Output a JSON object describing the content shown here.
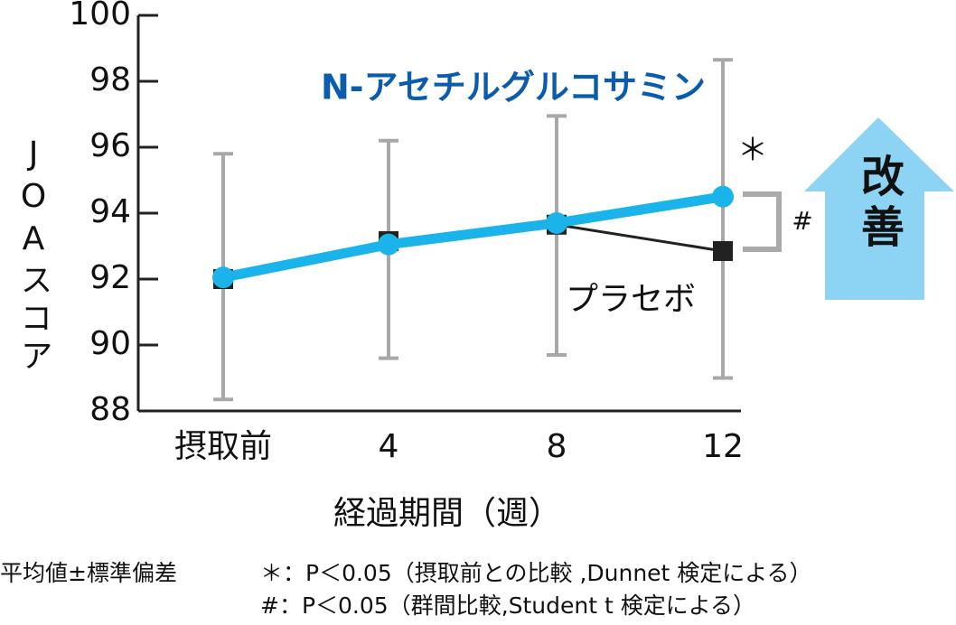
{
  "chart_data": {
    "type": "line",
    "ylabel": "JOAスコア",
    "xlabel": "経過期間（週）",
    "categories": [
      "摂取前",
      "4",
      "8",
      "12"
    ],
    "series": [
      {
        "name": "N-アセチルグルコサミン",
        "color": "#1ab4ea",
        "label_color": "#0b5cad",
        "values": [
          92.05,
          93.05,
          93.7,
          94.5
        ]
      },
      {
        "name": "プラセボ",
        "color": "#222222",
        "values": [
          92.0,
          93.15,
          93.65,
          92.85
        ]
      }
    ],
    "error_low": [
      88.35,
      89.6,
      89.7,
      89.0
    ],
    "error_high": [
      95.8,
      96.2,
      96.95,
      98.65
    ],
    "error_color": "#a8a8a8",
    "ylim": [
      88,
      100
    ],
    "yticks": [
      88,
      90,
      92,
      94,
      96,
      98,
      100
    ],
    "annotations": {
      "significance_12": "＊",
      "group_difference": "#",
      "arrow_text": "改善"
    },
    "arrow_color": "#8dd3f3",
    "footnotes": [
      "平均値±標準偏差",
      "＊：P＜0.05（摂取前との比較 ,Dunnet 検定による）",
      "#：P＜0.05（群間比較,Student t 検定による）"
    ]
  }
}
